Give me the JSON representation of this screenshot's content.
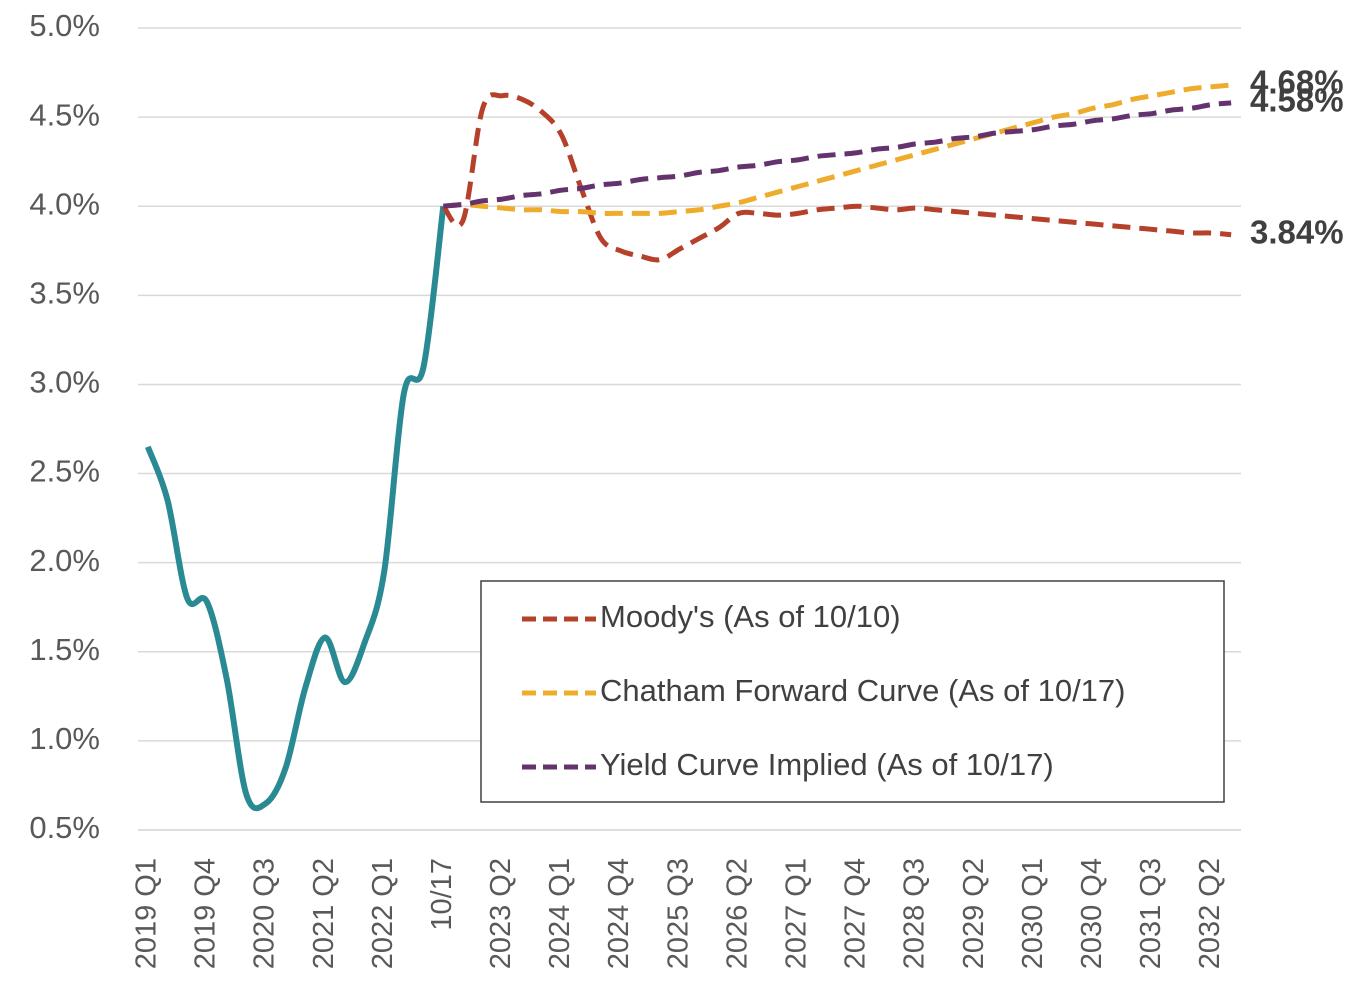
{
  "chart_data": {
    "type": "line",
    "categories": [
      "2019 Q1",
      null,
      null,
      "2019 Q4",
      null,
      null,
      "2020 Q3",
      null,
      null,
      "2021 Q2",
      null,
      null,
      "2022 Q1",
      null,
      null,
      "10/17",
      null,
      null,
      "2023 Q2",
      null,
      null,
      "2024 Q1",
      null,
      null,
      "2024 Q4",
      null,
      null,
      "2025 Q3",
      null,
      null,
      "2026 Q2",
      null,
      null,
      "2027 Q1",
      null,
      null,
      "2027 Q4",
      null,
      null,
      "2028 Q3",
      null,
      null,
      "2029 Q2",
      null,
      null,
      "2030 Q1",
      null,
      null,
      "2030 Q4",
      null,
      null,
      "2031 Q3",
      null,
      null,
      "2032 Q2",
      null
    ],
    "ylim": [
      0.5,
      5.0
    ],
    "yticks": [
      {
        "value": 0.5,
        "label": "0.5%"
      },
      {
        "value": 1.0,
        "label": "1.0%"
      },
      {
        "value": 1.5,
        "label": "1.5%"
      },
      {
        "value": 2.0,
        "label": "2.0%"
      },
      {
        "value": 2.5,
        "label": "2.5%"
      },
      {
        "value": 3.0,
        "label": "3.0%"
      },
      {
        "value": 3.5,
        "label": "3.5%"
      },
      {
        "value": 4.0,
        "label": "4.0%"
      },
      {
        "value": 4.5,
        "label": "4.5%"
      },
      {
        "value": 5.0,
        "label": "5.0%"
      }
    ],
    "grid": true,
    "series": [
      {
        "color": "#2a8a94",
        "dashed": false,
        "values": [
          2.65,
          2.35,
          1.8,
          1.78,
          1.35,
          0.7,
          0.65,
          0.85,
          1.3,
          1.58,
          1.33,
          1.55,
          1.95,
          2.95,
          3.1,
          4.0,
          null,
          null,
          null,
          null,
          null,
          null,
          null,
          null,
          null,
          null,
          null,
          null,
          null,
          null,
          null,
          null,
          null,
          null,
          null,
          null,
          null,
          null,
          null,
          null,
          null,
          null,
          null,
          null,
          null,
          null,
          null,
          null,
          null,
          null,
          null,
          null,
          null,
          null,
          null,
          null
        ]
      },
      {
        "name": "Moody's (As of 10/10)",
        "color": "#b5412a",
        "dashed": true,
        "values": [
          null,
          null,
          null,
          null,
          null,
          null,
          null,
          null,
          null,
          null,
          null,
          null,
          null,
          null,
          null,
          4.0,
          3.92,
          4.55,
          4.62,
          4.6,
          4.53,
          4.4,
          4.1,
          3.82,
          3.75,
          3.72,
          3.7,
          3.76,
          3.82,
          3.88,
          3.96,
          3.96,
          3.95,
          3.96,
          3.98,
          3.99,
          4.0,
          3.99,
          3.98,
          3.99,
          3.98,
          3.97,
          3.96,
          3.95,
          3.94,
          3.93,
          3.92,
          3.91,
          3.9,
          3.89,
          3.88,
          3.87,
          3.86,
          3.85,
          3.85,
          3.84
        ],
        "value_labels": [
          null,
          null,
          null,
          null,
          null,
          null,
          null,
          null,
          null,
          null,
          null,
          null,
          null,
          null,
          null,
          null,
          null,
          null,
          null,
          null,
          null,
          null,
          null,
          null,
          null,
          null,
          null,
          null,
          null,
          null,
          null,
          null,
          null,
          null,
          null,
          null,
          null,
          null,
          null,
          null,
          null,
          null,
          null,
          null,
          null,
          null,
          null,
          null,
          null,
          null,
          null,
          null,
          null,
          null,
          null,
          "3.84%"
        ]
      },
      {
        "name": "Chatham Forward Curve (As of 10/17)",
        "color": "#efac2c",
        "dashed": true,
        "values": [
          null,
          null,
          null,
          null,
          null,
          null,
          null,
          null,
          null,
          null,
          null,
          null,
          null,
          null,
          null,
          4.0,
          4.01,
          4.0,
          3.99,
          3.98,
          3.98,
          3.97,
          3.97,
          3.96,
          3.96,
          3.96,
          3.96,
          3.97,
          3.98,
          4.0,
          4.02,
          4.05,
          4.08,
          4.11,
          4.14,
          4.17,
          4.2,
          4.23,
          4.26,
          4.29,
          4.32,
          4.35,
          4.38,
          4.41,
          4.44,
          4.47,
          4.5,
          4.52,
          4.55,
          4.57,
          4.6,
          4.62,
          4.64,
          4.66,
          4.67,
          4.68
        ],
        "value_labels": [
          null,
          null,
          null,
          null,
          null,
          null,
          null,
          null,
          null,
          null,
          null,
          null,
          null,
          null,
          null,
          null,
          null,
          null,
          null,
          null,
          null,
          null,
          null,
          null,
          null,
          null,
          null,
          null,
          null,
          null,
          null,
          null,
          null,
          null,
          null,
          null,
          null,
          null,
          null,
          null,
          null,
          null,
          null,
          null,
          null,
          null,
          null,
          null,
          null,
          null,
          null,
          null,
          null,
          null,
          null,
          "4.68%"
        ]
      },
      {
        "name": "Yield Curve Implied (As of 10/17)",
        "color": "#64336e",
        "dashed": true,
        "values": [
          null,
          null,
          null,
          null,
          null,
          null,
          null,
          null,
          null,
          null,
          null,
          null,
          null,
          null,
          null,
          4.0,
          4.01,
          4.03,
          4.04,
          4.06,
          4.07,
          4.09,
          4.1,
          4.12,
          4.13,
          4.15,
          4.16,
          4.17,
          4.19,
          4.2,
          4.22,
          4.23,
          4.25,
          4.26,
          4.28,
          4.29,
          4.3,
          4.32,
          4.33,
          4.35,
          4.36,
          4.38,
          4.39,
          4.41,
          4.42,
          4.43,
          4.45,
          4.46,
          4.48,
          4.49,
          4.51,
          4.52,
          4.54,
          4.55,
          4.57,
          4.58
        ],
        "value_labels": [
          null,
          null,
          null,
          null,
          null,
          null,
          null,
          null,
          null,
          null,
          null,
          null,
          null,
          null,
          null,
          null,
          null,
          null,
          null,
          null,
          null,
          null,
          null,
          null,
          null,
          null,
          null,
          null,
          null,
          null,
          null,
          null,
          null,
          null,
          null,
          null,
          null,
          null,
          null,
          null,
          null,
          null,
          null,
          null,
          null,
          null,
          null,
          null,
          null,
          null,
          null,
          null,
          null,
          null,
          null,
          "4.58%"
        ]
      }
    ]
  }
}
